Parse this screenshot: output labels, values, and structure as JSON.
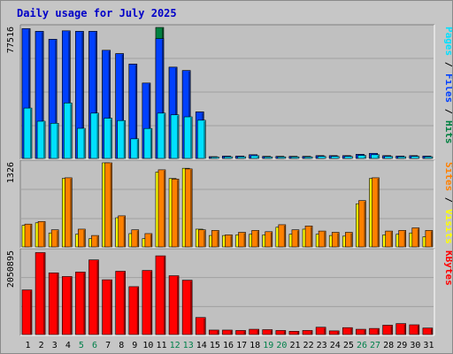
{
  "window": {
    "title": "Daily usage for July 2025"
  },
  "colors": {
    "background": "#c6c6c6",
    "plot_background": "#c0c0c0",
    "title": "#0000c8",
    "pages": "#00e0ff",
    "files": "#0040ff",
    "hits": "#008040",
    "sites": "#ff8000",
    "visits": "#ffff00",
    "kbytes": "#ff0000",
    "weekend_day": "#00804a",
    "weekday": "#000000"
  },
  "chart_data": [
    {
      "type": "bar",
      "panel": "top",
      "ymax_label": "77516",
      "ylim": [
        0,
        77516
      ],
      "right_label": {
        "parts": [
          {
            "text": "Pages",
            "color_key": "pages"
          },
          {
            "text": " / ",
            "color_key": "weekday"
          },
          {
            "text": "Files",
            "color_key": "files"
          },
          {
            "text": " / ",
            "color_key": "weekday"
          },
          {
            "text": "Hits",
            "color_key": "hits"
          }
        ]
      },
      "categories": [
        "1",
        "2",
        "3",
        "4",
        "5",
        "6",
        "7",
        "8",
        "9",
        "10",
        "11",
        "12",
        "13",
        "14",
        "15",
        "16",
        "17",
        "18",
        "19",
        "20",
        "21",
        "22",
        "23",
        "24",
        "25",
        "26",
        "27",
        "28",
        "29",
        "30",
        "31"
      ],
      "series": [
        {
          "name": "Hits",
          "color_key": "hits",
          "values": [
            76800,
            75200,
            70500,
            75500,
            75200,
            75200,
            64000,
            62000,
            55800,
            44600,
            77516,
            54000,
            52000,
            27500,
            1000,
            1400,
            1400,
            2200,
            1200,
            1200,
            1200,
            1200,
            1600,
            1600,
            1600,
            2400,
            3000,
            1600,
            1400,
            1600,
            1400
          ]
        },
        {
          "name": "Files",
          "color_key": "files",
          "values": [
            76800,
            75200,
            70500,
            75500,
            75200,
            75200,
            64000,
            62000,
            55800,
            44600,
            70900,
            54000,
            52000,
            27500,
            1000,
            1400,
            1400,
            2200,
            1200,
            1200,
            1200,
            1200,
            1600,
            1600,
            1600,
            2400,
            3000,
            1600,
            1400,
            1600,
            1400
          ]
        },
        {
          "name": "Pages",
          "color_key": "pages",
          "values": [
            29800,
            22000,
            20800,
            32800,
            17800,
            26800,
            23800,
            22400,
            11600,
            17700,
            26800,
            25800,
            24600,
            22600,
            800,
            1000,
            1000,
            1600,
            900,
            900,
            900,
            900,
            1200,
            1200,
            1200,
            1800,
            2200,
            1200,
            1000,
            1200,
            1000
          ]
        }
      ]
    },
    {
      "type": "bar",
      "panel": "middle",
      "ymax_label": "1326",
      "ylim": [
        0,
        1326
      ],
      "right_label": {
        "parts": [
          {
            "text": "Sites",
            "color_key": "sites"
          },
          {
            "text": " / ",
            "color_key": "weekday"
          },
          {
            "text": "Visits",
            "color_key": "visits"
          }
        ]
      },
      "categories": [
        "1",
        "2",
        "3",
        "4",
        "5",
        "6",
        "7",
        "8",
        "9",
        "10",
        "11",
        "12",
        "13",
        "14",
        "15",
        "16",
        "17",
        "18",
        "19",
        "20",
        "21",
        "22",
        "23",
        "24",
        "25",
        "26",
        "27",
        "28",
        "29",
        "30",
        "31"
      ],
      "series": [
        {
          "name": "Visits",
          "color_key": "visits",
          "values": [
            340,
            380,
            220,
            1080,
            200,
            130,
            1326,
            460,
            210,
            130,
            1180,
            1080,
            1240,
            280,
            180,
            180,
            190,
            200,
            190,
            310,
            200,
            280,
            200,
            180,
            170,
            680,
            1080,
            190,
            200,
            220,
            160
          ]
        },
        {
          "name": "Sites",
          "color_key": "sites",
          "values": [
            360,
            400,
            270,
            1090,
            280,
            180,
            1326,
            490,
            270,
            210,
            1216,
            1070,
            1230,
            270,
            260,
            190,
            230,
            260,
            240,
            350,
            270,
            330,
            250,
            230,
            230,
            730,
            1090,
            250,
            260,
            300,
            260
          ]
        }
      ]
    },
    {
      "type": "bar",
      "panel": "bottom",
      "ymax_label": "2050895",
      "ylim": [
        0,
        2050895
      ],
      "right_label": {
        "parts": [
          {
            "text": "KBytes",
            "color_key": "kbytes"
          }
        ]
      },
      "categories": [
        "1",
        "2",
        "3",
        "4",
        "5",
        "6",
        "7",
        "8",
        "9",
        "10",
        "11",
        "12",
        "13",
        "14",
        "15",
        "16",
        "17",
        "18",
        "19",
        "20",
        "21",
        "22",
        "23",
        "24",
        "25",
        "26",
        "27",
        "28",
        "29",
        "30",
        "31"
      ],
      "series": [
        {
          "name": "KBytes",
          "color_key": "kbytes",
          "values": [
            1100000,
            2020000,
            1520000,
            1430000,
            1540000,
            1840000,
            1350000,
            1560000,
            1180000,
            1580000,
            1940000,
            1450000,
            1340000,
            420000,
            110000,
            110000,
            100000,
            130000,
            120000,
            100000,
            80000,
            100000,
            180000,
            90000,
            170000,
            130000,
            150000,
            230000,
            270000,
            240000,
            160000
          ]
        }
      ]
    }
  ],
  "x_axis": {
    "labels": [
      "1",
      "2",
      "3",
      "4",
      "5",
      "6",
      "7",
      "8",
      "9",
      "10",
      "11",
      "12",
      "13",
      "14",
      "15",
      "16",
      "17",
      "18",
      "19",
      "20",
      "21",
      "22",
      "23",
      "24",
      "25",
      "26",
      "27",
      "28",
      "29",
      "30",
      "31"
    ],
    "weekend": [
      5,
      6,
      12,
      13,
      19,
      20,
      26,
      27
    ]
  }
}
